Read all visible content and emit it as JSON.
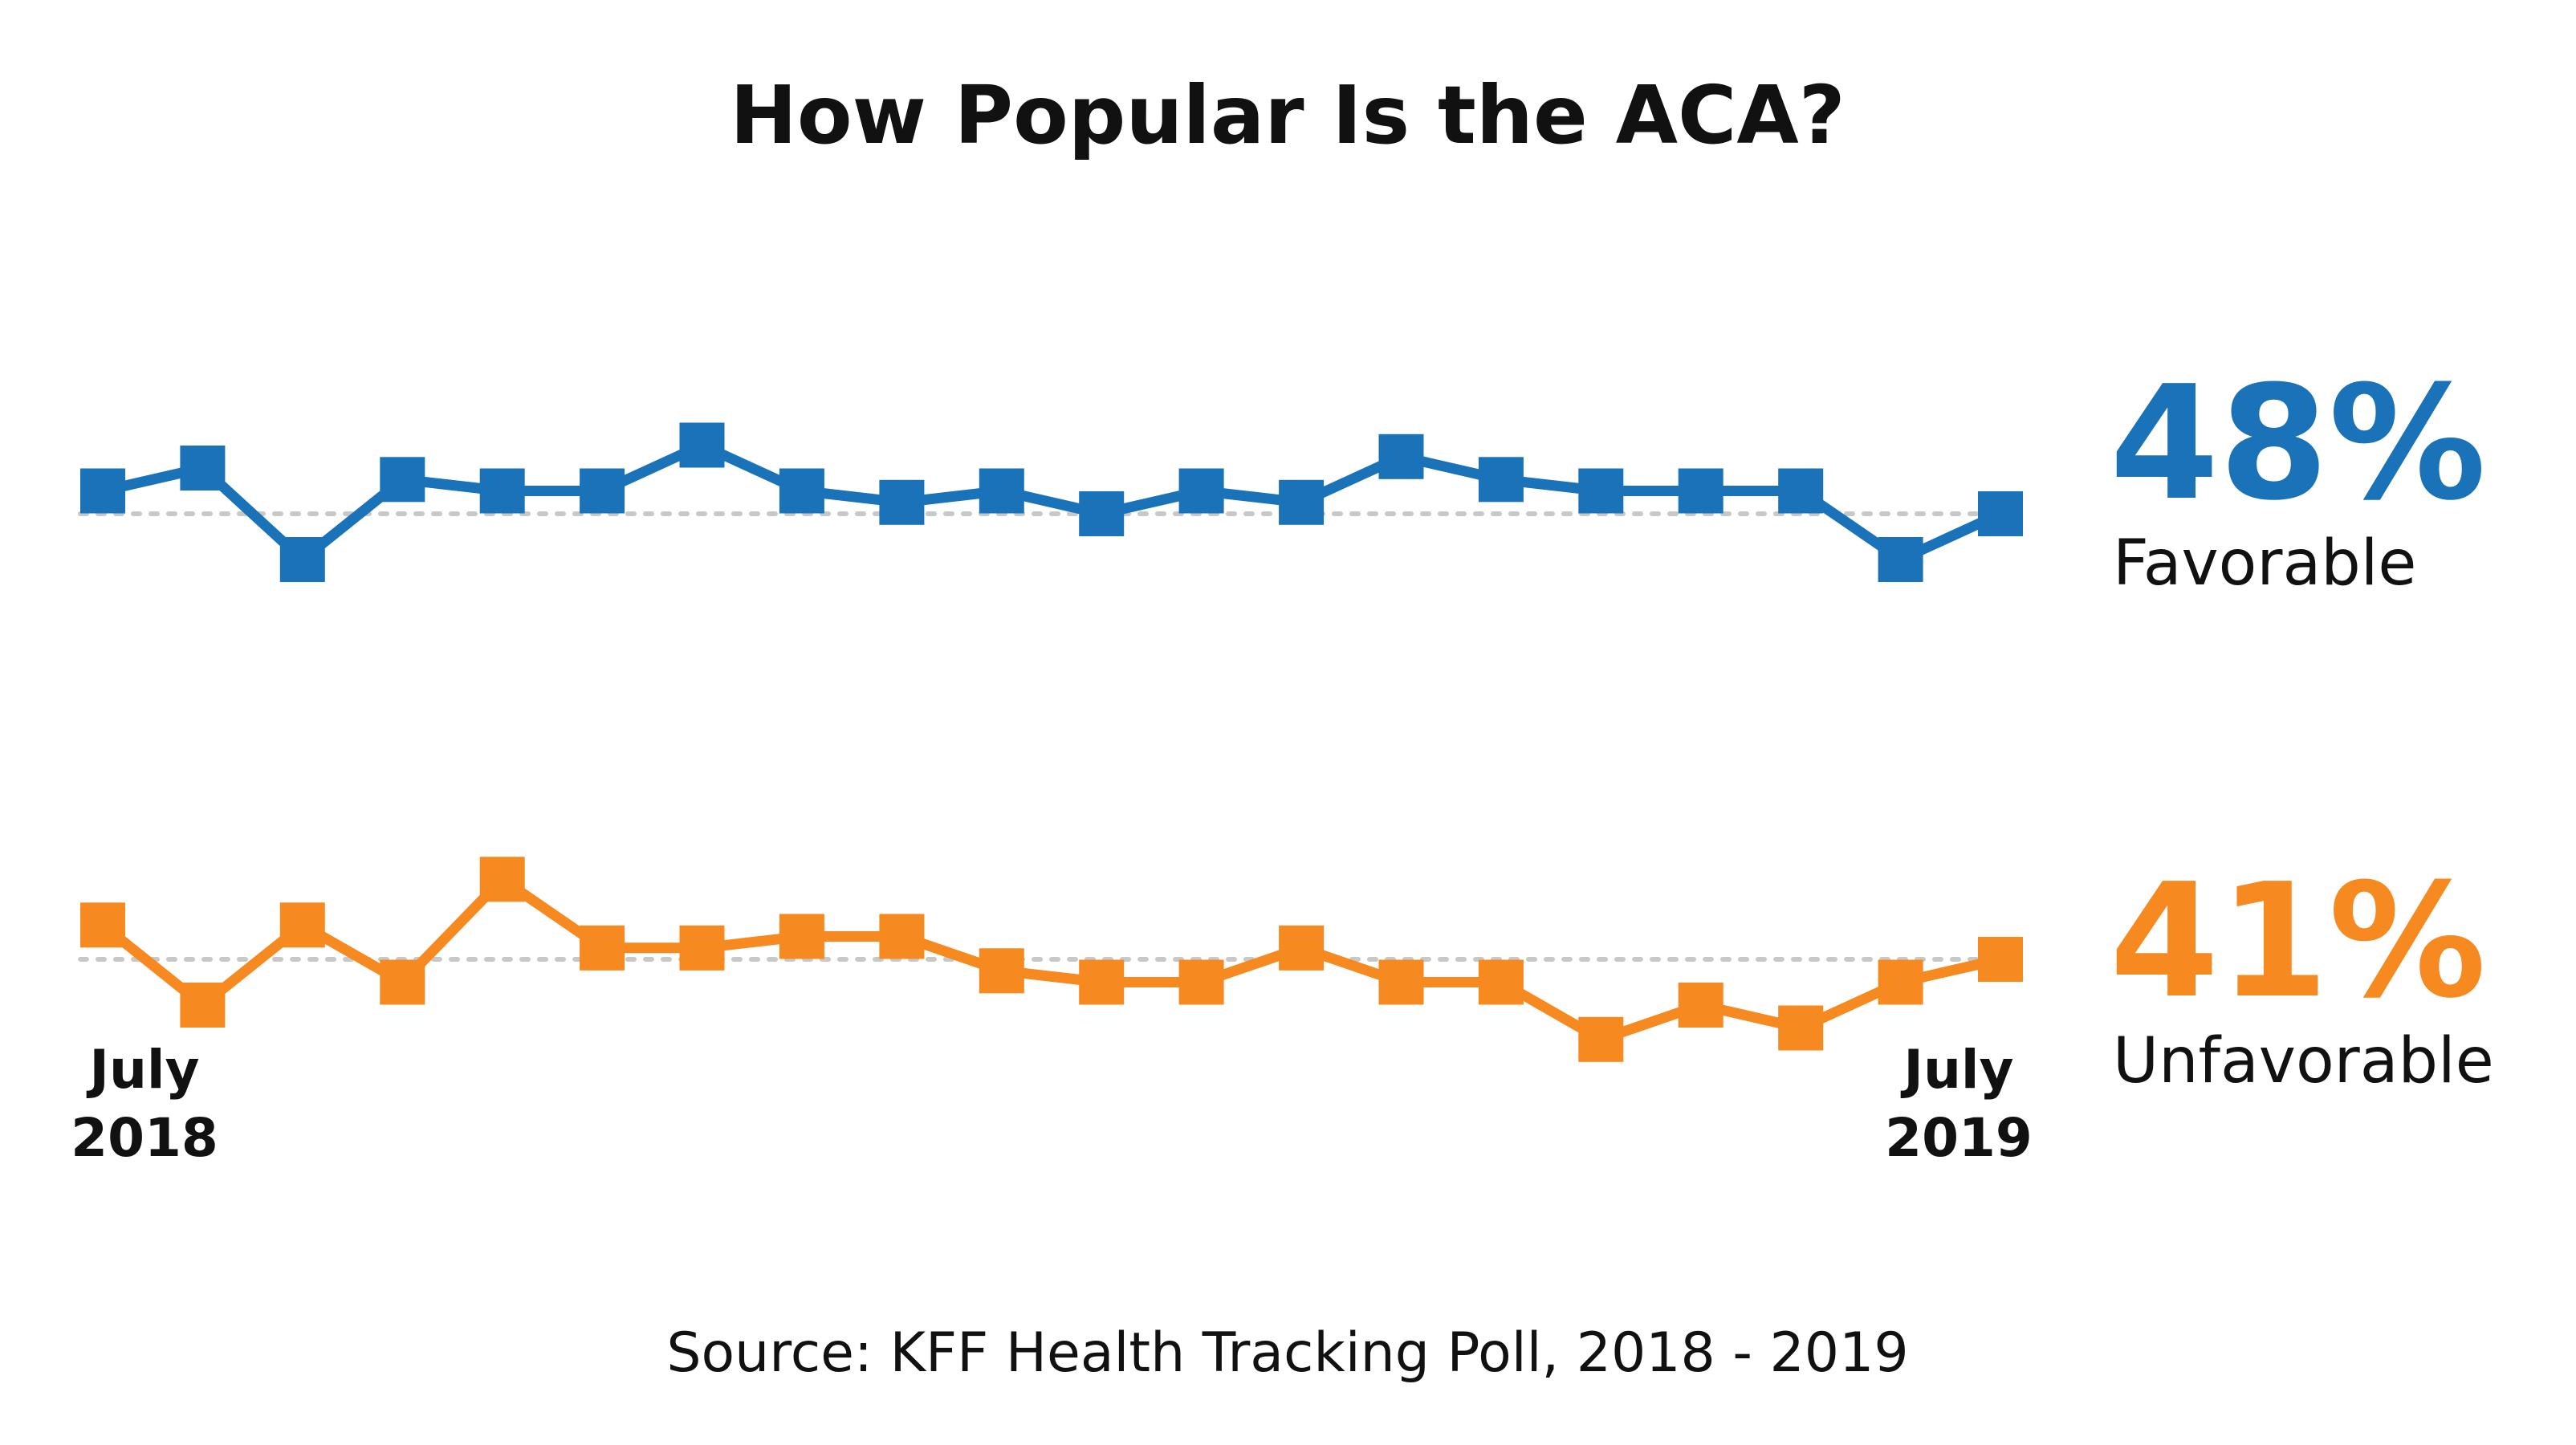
{
  "chart_data": {
    "type": "line",
    "title": "How Popular Is the ACA?",
    "source": "Source: KFF Health Tracking Poll, 2018 - 2019",
    "x_start_label": {
      "line1": "July",
      "line2": "2018"
    },
    "x_end_label": {
      "line1": "July",
      "line2": "2019"
    },
    "series": [
      {
        "name": "Favorable",
        "value_label": "48%",
        "color": "#1a73b8",
        "reference": 48,
        "values": [
          49,
          50,
          46,
          49.5,
          49,
          49,
          51,
          49,
          48.5,
          49,
          48,
          49,
          48.5,
          50.5,
          49.5,
          49,
          49,
          49,
          46,
          48
        ]
      },
      {
        "name": "Unfavorable",
        "value_label": "41%",
        "color": "#f6891f",
        "reference": 41,
        "values": [
          42.5,
          39,
          42.5,
          40,
          44.5,
          41.5,
          41.5,
          42,
          42,
          40.5,
          40,
          40,
          41.5,
          40,
          40,
          37.5,
          39,
          38,
          40,
          41
        ]
      }
    ],
    "grid": "dotted reference line at final value"
  }
}
